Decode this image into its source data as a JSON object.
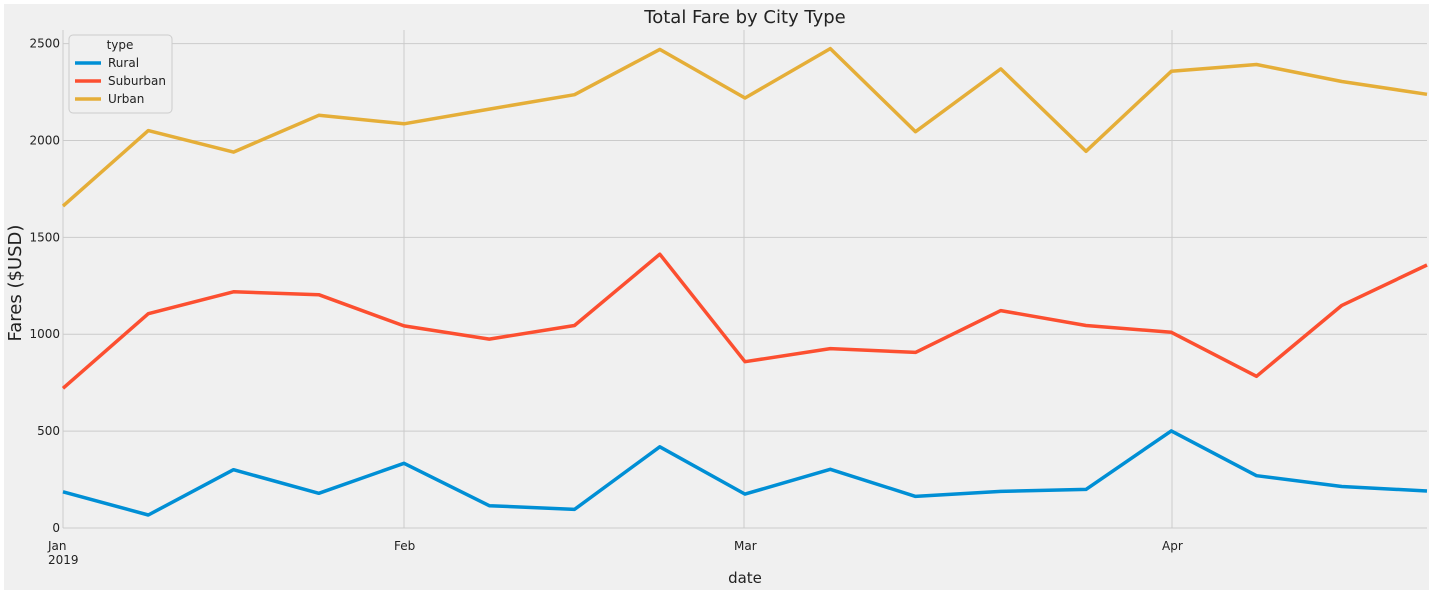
{
  "chart_data": {
    "type": "line",
    "title": "Total Fare by City Type",
    "xlabel": "date",
    "ylabel": "Fares ($USD)",
    "ylim": [
      0,
      2600
    ],
    "grid": true,
    "x": [
      "2019-01-06",
      "2019-01-13",
      "2019-01-20",
      "2019-01-27",
      "2019-02-03",
      "2019-02-10",
      "2019-02-17",
      "2019-02-24",
      "2019-03-03",
      "2019-03-10",
      "2019-03-17",
      "2019-03-24",
      "2019-03-31",
      "2019-04-07",
      "2019-04-14",
      "2019-04-21",
      "2019-04-28"
    ],
    "x_ticks": [
      {
        "label": "Jan",
        "sublabel": "2019"
      },
      {
        "label": "Feb",
        "sublabel": ""
      },
      {
        "label": "Mar",
        "sublabel": ""
      },
      {
        "label": "Apr",
        "sublabel": ""
      }
    ],
    "y_ticks": [
      0,
      500,
      1000,
      1500,
      2000,
      2500
    ],
    "legend": {
      "title": "type",
      "position": "top-left"
    },
    "series": [
      {
        "name": "Rural",
        "color": "#008fd5",
        "values": [
          187,
          67,
          301,
          179,
          334,
          115,
          96,
          419,
          175,
          303,
          163,
          189,
          199,
          501,
          270,
          214,
          191
        ]
      },
      {
        "name": "Suburban",
        "color": "#fc4f30",
        "values": [
          721,
          1106,
          1219,
          1204,
          1043,
          975,
          1045,
          1413,
          858,
          926,
          906,
          1122,
          1045,
          1010,
          783,
          1149,
          1357
        ]
      },
      {
        "name": "Urban",
        "color": "#e5ae38",
        "values": [
          1661,
          2051,
          1940,
          2130,
          2086,
          2162,
          2236,
          2470,
          2219,
          2474,
          2045,
          2369,
          1944,
          2357,
          2392,
          2304,
          2238
        ]
      }
    ]
  }
}
